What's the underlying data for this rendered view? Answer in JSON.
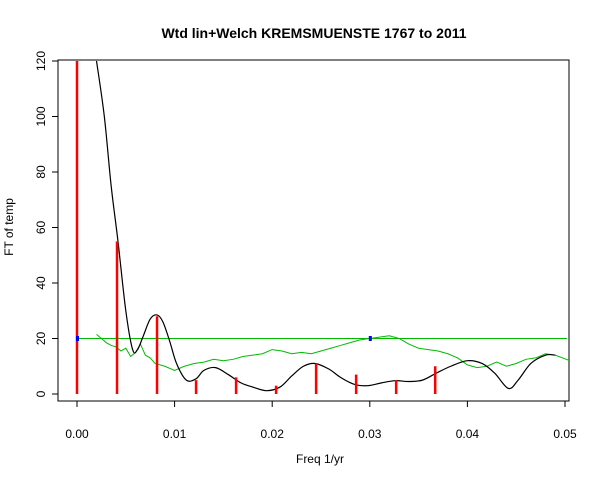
{
  "chart_data": {
    "type": "line",
    "title": "Wtd lin+Welch KREMSMUENSTE 1767 to 2011",
    "xlabel": "Freq 1/yr",
    "ylabel": "FT of temp",
    "xlim": [
      0,
      0.05
    ],
    "ylim": [
      0,
      120
    ],
    "x_ticks": [
      "0.00",
      "0.01",
      "0.02",
      "0.03",
      "0.04",
      "0.05"
    ],
    "y_ticks": [
      "0",
      "20",
      "40",
      "60",
      "80",
      "100",
      "120"
    ],
    "grid": false,
    "legend": "none",
    "colors": {
      "spikes": "#ff0000",
      "curve": "#000000",
      "noise": "#00bb00",
      "ref_line": "#00bb00",
      "markers": "#0000ff"
    },
    "series": [
      {
        "kind": "spikes",
        "x": [
          0.0,
          0.0041,
          0.0082,
          0.0122,
          0.0163,
          0.0204,
          0.0245,
          0.0286,
          0.0327,
          0.0367
        ],
        "y": [
          120,
          55,
          28,
          5,
          6,
          3,
          11,
          7,
          5,
          10
        ]
      },
      {
        "kind": "smooth",
        "x": [
          0.002,
          0.0028,
          0.0035,
          0.0042,
          0.005,
          0.0057,
          0.0062,
          0.0068,
          0.0075,
          0.0082,
          0.0088,
          0.0095,
          0.0102,
          0.0112,
          0.0122,
          0.013,
          0.0142,
          0.0155,
          0.0168,
          0.018,
          0.0194,
          0.0208,
          0.022,
          0.0232,
          0.0244,
          0.0258,
          0.027,
          0.0284,
          0.0298,
          0.0312,
          0.0326,
          0.034,
          0.0354,
          0.0368,
          0.0383,
          0.04,
          0.0415,
          0.0428,
          0.0442,
          0.0452,
          0.0465,
          0.048,
          0.049
        ],
        "y": [
          120,
          100,
          75,
          55,
          30,
          16,
          16,
          21,
          27,
          28.5,
          26,
          19,
          11,
          5,
          5.5,
          8.5,
          9.5,
          7,
          4,
          2.5,
          1.2,
          2.5,
          6.5,
          10,
          11,
          9,
          6,
          3.5,
          3,
          4,
          4.8,
          4.5,
          5,
          7.5,
          10,
          12,
          11,
          7.5,
          2,
          5,
          11,
          14,
          14
        ]
      },
      {
        "kind": "noise",
        "x": [
          0.002,
          0.0025,
          0.003,
          0.0035,
          0.004,
          0.0045,
          0.005,
          0.0055,
          0.006,
          0.0065,
          0.007,
          0.0075,
          0.008,
          0.009,
          0.01,
          0.011,
          0.012,
          0.013,
          0.014,
          0.015,
          0.016,
          0.017,
          0.018,
          0.019,
          0.02,
          0.021,
          0.022,
          0.023,
          0.024,
          0.025,
          0.026,
          0.027,
          0.028,
          0.029,
          0.03,
          0.031,
          0.032,
          0.033,
          0.034,
          0.035,
          0.036,
          0.037,
          0.038,
          0.039,
          0.04,
          0.041,
          0.042,
          0.043,
          0.044,
          0.045,
          0.046,
          0.047,
          0.048,
          0.049,
          0.0505
        ],
        "y": [
          21.5,
          20,
          18.5,
          17.5,
          17,
          15.5,
          16.5,
          13.5,
          15,
          18,
          14,
          13,
          11,
          10,
          8.5,
          10,
          11,
          11.5,
          12.5,
          12,
          12.5,
          13.5,
          14,
          14.5,
          16,
          15.5,
          14.5,
          15,
          14.5,
          15.5,
          16.5,
          17.5,
          18.5,
          19.5,
          20,
          20.5,
          21,
          20,
          18,
          16.5,
          16,
          15.5,
          14.5,
          13,
          10.5,
          9.5,
          10,
          11.5,
          10,
          11,
          12.5,
          13,
          14.5,
          14,
          12
        ]
      },
      {
        "kind": "reference",
        "x": [
          0.0,
          0.0502
        ],
        "y": [
          20,
          20
        ]
      },
      {
        "kind": "markers",
        "x": [
          0.0,
          0.03
        ],
        "y": [
          20,
          20
        ]
      }
    ]
  }
}
